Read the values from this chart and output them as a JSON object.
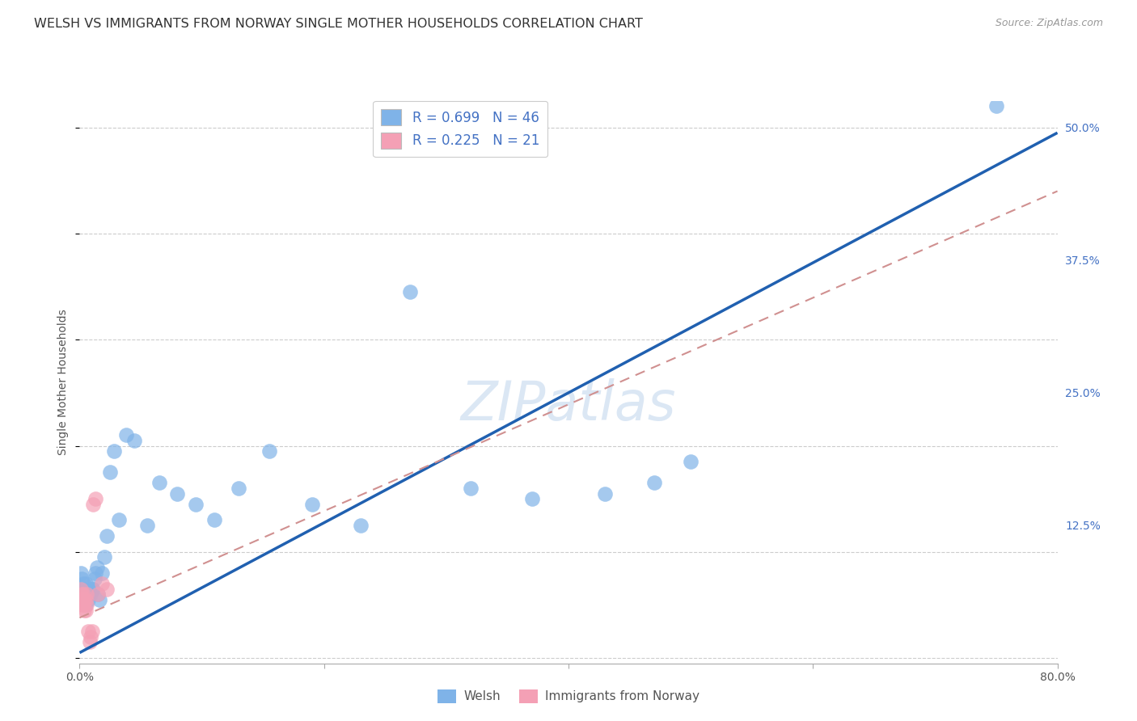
{
  "title": "WELSH VS IMMIGRANTS FROM NORWAY SINGLE MOTHER HOUSEHOLDS CORRELATION CHART",
  "source": "Source: ZipAtlas.com",
  "ylabel": "Single Mother Households",
  "xlim": [
    0,
    0.8
  ],
  "ylim": [
    -0.005,
    0.525
  ],
  "xticks": [
    0.0,
    0.2,
    0.4,
    0.6,
    0.8
  ],
  "xticklabels": [
    "0.0%",
    "",
    "",
    "",
    "80.0%"
  ],
  "yticks": [
    0.0,
    0.125,
    0.25,
    0.375,
    0.5
  ],
  "yticklabels": [
    "",
    "12.5%",
    "25.0%",
    "37.5%",
    "50.0%"
  ],
  "legend_labels": [
    "Welsh",
    "Immigrants from Norway"
  ],
  "welsh_R": 0.699,
  "welsh_N": 46,
  "norway_R": 0.225,
  "norway_N": 21,
  "welsh_color": "#7fb3e8",
  "norway_color": "#f4a0b5",
  "welsh_line_color": "#2060b0",
  "norway_line_color": "#d09090",
  "watermark": "ZIPatlas",
  "title_fontsize": 11.5,
  "axis_label_fontsize": 10,
  "tick_fontsize": 10,
  "welsh_x": [
    0.001,
    0.002,
    0.002,
    0.003,
    0.003,
    0.003,
    0.004,
    0.004,
    0.005,
    0.005,
    0.006,
    0.007,
    0.008,
    0.008,
    0.009,
    0.01,
    0.011,
    0.012,
    0.013,
    0.014,
    0.015,
    0.016,
    0.018,
    0.02,
    0.022,
    0.025,
    0.028,
    0.032,
    0.038,
    0.045,
    0.055,
    0.065,
    0.08,
    0.095,
    0.11,
    0.13,
    0.155,
    0.19,
    0.23,
    0.27,
    0.32,
    0.37,
    0.43,
    0.47,
    0.5,
    0.75
  ],
  "welsh_y": [
    0.08,
    0.075,
    0.065,
    0.07,
    0.06,
    0.055,
    0.065,
    0.055,
    0.07,
    0.05,
    0.06,
    0.055,
    0.065,
    0.06,
    0.06,
    0.065,
    0.065,
    0.075,
    0.08,
    0.085,
    0.06,
    0.055,
    0.08,
    0.095,
    0.115,
    0.175,
    0.195,
    0.13,
    0.21,
    0.205,
    0.125,
    0.165,
    0.155,
    0.145,
    0.13,
    0.16,
    0.195,
    0.145,
    0.125,
    0.345,
    0.16,
    0.15,
    0.155,
    0.165,
    0.185,
    0.52
  ],
  "norway_x": [
    0.001,
    0.001,
    0.002,
    0.002,
    0.003,
    0.003,
    0.004,
    0.004,
    0.005,
    0.005,
    0.006,
    0.006,
    0.007,
    0.008,
    0.009,
    0.01,
    0.011,
    0.013,
    0.015,
    0.018,
    0.022
  ],
  "norway_y": [
    0.065,
    0.055,
    0.06,
    0.05,
    0.06,
    0.05,
    0.055,
    0.045,
    0.055,
    0.045,
    0.06,
    0.05,
    0.025,
    0.015,
    0.02,
    0.025,
    0.145,
    0.15,
    0.06,
    0.07,
    0.065
  ],
  "welsh_trend_x": [
    0.0,
    0.8
  ],
  "welsh_trend_y": [
    0.005,
    0.495
  ],
  "norway_trend_x": [
    0.0,
    0.8
  ],
  "norway_trend_y": [
    0.038,
    0.44
  ],
  "grid_color": "#cccccc",
  "background_color": "#ffffff"
}
